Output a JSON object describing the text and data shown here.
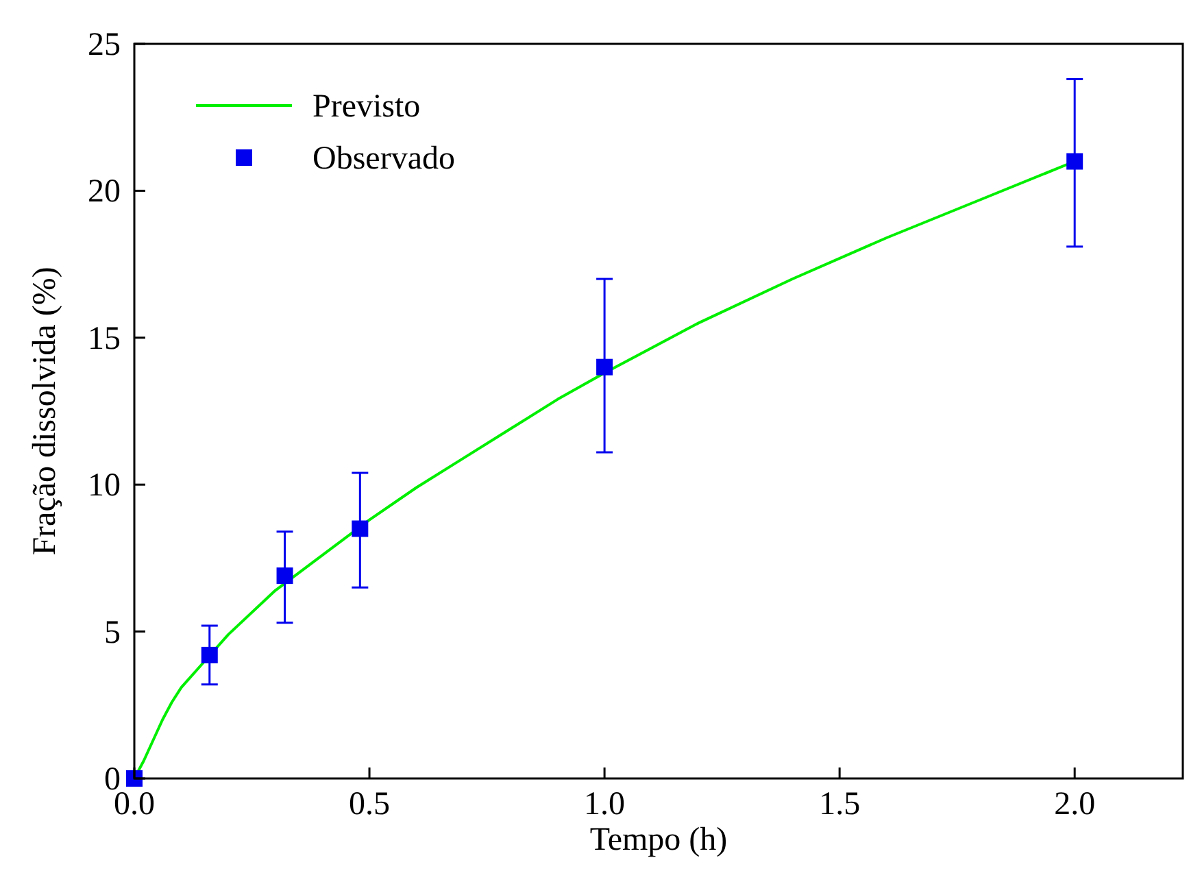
{
  "chart_data": {
    "type": "line",
    "xlabel": "Tempo (h)",
    "ylabel": "Fração dissolvida (%)",
    "xlim": [
      0,
      2.23
    ],
    "ylim": [
      0,
      25
    ],
    "xticks": [
      {
        "value": 0,
        "label": "0.0"
      },
      {
        "value": 0.5,
        "label": "0.5"
      },
      {
        "value": 1,
        "label": "1.0"
      },
      {
        "value": 1.5,
        "label": "1.5"
      },
      {
        "value": 2,
        "label": "2.0"
      }
    ],
    "yticks": [
      0,
      5,
      10,
      15,
      20,
      25
    ],
    "legend": "top left",
    "grid": false,
    "series": [
      {
        "name": "Previsto",
        "color": "#00ee00",
        "marker": "none",
        "line_style": "solid",
        "x": [
          0,
          0.02,
          0.04,
          0.06,
          0.08,
          0.1,
          0.15,
          0.2,
          0.3,
          0.4,
          0.5,
          0.6,
          0.7,
          0.8,
          0.9,
          1.0,
          1.2,
          1.4,
          1.6,
          1.8,
          2.0
        ],
        "values": [
          0,
          0.6,
          1.3,
          2.0,
          2.6,
          3.1,
          4.0,
          4.9,
          6.4,
          7.6,
          8.8,
          9.9,
          10.9,
          11.9,
          12.9,
          13.8,
          15.5,
          17.0,
          18.4,
          19.7,
          21.0
        ]
      },
      {
        "name": "Observado",
        "type": "scatter",
        "color": "#0000ee",
        "marker": "square",
        "x": [
          0,
          0.16,
          0.32,
          0.48,
          1.0,
          2.0
        ],
        "values": [
          0,
          4.2,
          6.9,
          8.5,
          14.0,
          21.0
        ],
        "errors": [
          null,
          [
            3.2,
            5.2
          ],
          [
            5.3,
            8.4
          ],
          [
            6.5,
            10.4
          ],
          [
            11.1,
            17.0
          ],
          [
            18.1,
            23.8
          ]
        ]
      }
    ]
  }
}
